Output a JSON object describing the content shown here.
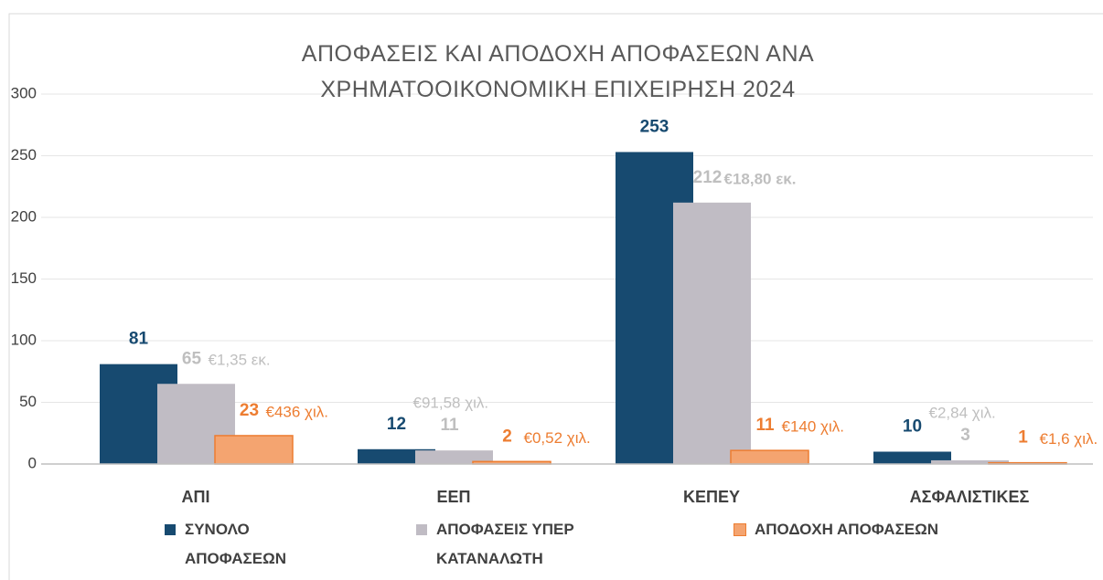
{
  "chart_data": {
    "type": "bar",
    "title": "ΑΠΟΦΑΣΕΙΣ ΚΑΙ ΑΠΟΔΟΧΗ ΑΠΟΦΑΣΕΩΝ ΑΝΑ ΧΡΗΜΑΤΟΟΙΚΟΝΟΜΙΚΗ ΕΠΙΧΕΙΡΗΣΗ 2024",
    "categories": [
      "ΑΠΙ",
      "ΕΕΠ",
      "ΚΕΠΕΥ",
      "ΑΣΦΑΛΙΣΤΙΚΕΣ"
    ],
    "series": [
      {
        "name": "ΣΥΝΟΛΟ ΑΠΟΦΑΣΕΩΝ",
        "color": "#174a70",
        "values": [
          81,
          12,
          253,
          10
        ]
      },
      {
        "name": "ΑΠΟΦΑΣΕΙΣ ΥΠΕΡ ΚΑΤΑΝΑΛΩΤΗ",
        "color": "#c0bcc4",
        "values": [
          65,
          11,
          212,
          3
        ],
        "amount_labels": [
          "€1,35 εκ.",
          "€91,58 χιλ.",
          "€18,80 εκ.",
          "€2,84 χιλ."
        ]
      },
      {
        "name": "ΑΠΟΔΟΧΗ ΑΠΟΦΑΣΕΩΝ",
        "color": "#f4a470",
        "values": [
          23,
          2,
          11,
          1
        ],
        "amount_labels": [
          "€436 χιλ.",
          "€0,52 χιλ.",
          "€140 χιλ.",
          "€1,6 χιλ."
        ]
      }
    ],
    "ylim": [
      0,
      300
    ],
    "yticks": [
      0,
      50,
      100,
      150,
      200,
      250,
      300
    ],
    "grid": true,
    "legend": "bottom"
  }
}
